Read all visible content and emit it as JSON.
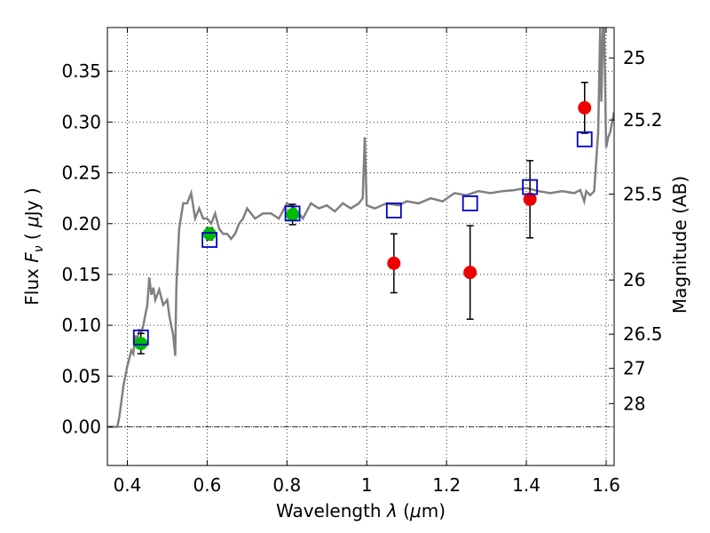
{
  "chart_data": {
    "type": "scatter",
    "xlabel": "Wavelength  λ (μm)",
    "ylabel": "Flux  F_ν  ( μJy )",
    "ylabel_parts": {
      "prefix": "Flux  ",
      "symbol": "F",
      "subscript": "ν",
      "unit_open": "  ( ",
      "unit_mu": "μ",
      "unit_rest": "Jy )"
    },
    "xlabel_parts": {
      "prefix": "Wavelength  ",
      "symbol": "λ",
      "unit_open": " (",
      "unit_mu": "μ",
      "unit_rest": "m)"
    },
    "y2label": "Magnitude (AB)",
    "xlim": [
      0.35,
      1.62
    ],
    "ylim": [
      -0.038,
      0.393
    ],
    "grid": true,
    "x_ticks": [
      {
        "v": 0.4,
        "label": "0.4"
      },
      {
        "v": 0.6,
        "label": "0.6"
      },
      {
        "v": 0.8,
        "label": "0.8"
      },
      {
        "v": 1.0,
        "label": "1"
      },
      {
        "v": 1.2,
        "label": "1.2"
      },
      {
        "v": 1.4,
        "label": "1.4"
      },
      {
        "v": 1.6,
        "label": "1.6"
      }
    ],
    "y_ticks": [
      {
        "v": 0.0,
        "label": "0.00"
      },
      {
        "v": 0.05,
        "label": "0.05"
      },
      {
        "v": 0.1,
        "label": "0.10"
      },
      {
        "v": 0.15,
        "label": "0.15"
      },
      {
        "v": 0.2,
        "label": "0.20"
      },
      {
        "v": 0.25,
        "label": "0.25"
      },
      {
        "v": 0.3,
        "label": "0.30"
      },
      {
        "v": 0.35,
        "label": "0.35"
      }
    ],
    "mag_ticks": [
      {
        "mag": 25,
        "label": "25"
      },
      {
        "mag": 25.2,
        "label": "25.2"
      },
      {
        "mag": 25.5,
        "label": "25.5"
      },
      {
        "mag": 26,
        "label": "26"
      },
      {
        "mag": 26.5,
        "label": "26.5"
      },
      {
        "mag": 27,
        "label": "27"
      },
      {
        "mag": 28,
        "label": "28"
      }
    ],
    "template_spectrum": {
      "color": "#808080",
      "x": [
        0.35,
        0.375,
        0.38,
        0.39,
        0.4,
        0.41,
        0.415,
        0.42,
        0.425,
        0.43,
        0.435,
        0.44,
        0.445,
        0.45,
        0.455,
        0.46,
        0.465,
        0.47,
        0.48,
        0.49,
        0.5,
        0.505,
        0.51,
        0.515,
        0.52,
        0.523,
        0.53,
        0.54,
        0.55,
        0.56,
        0.57,
        0.58,
        0.59,
        0.6,
        0.61,
        0.62,
        0.63,
        0.64,
        0.65,
        0.66,
        0.67,
        0.68,
        0.69,
        0.7,
        0.72,
        0.74,
        0.76,
        0.78,
        0.8,
        0.82,
        0.84,
        0.86,
        0.88,
        0.9,
        0.92,
        0.94,
        0.96,
        0.98,
        0.99,
        0.995,
        1.0,
        1.02,
        1.05,
        1.08,
        1.1,
        1.13,
        1.16,
        1.19,
        1.22,
        1.25,
        1.28,
        1.31,
        1.34,
        1.37,
        1.4,
        1.43,
        1.46,
        1.49,
        1.52,
        1.535,
        1.545,
        1.55,
        1.56,
        1.57,
        1.58,
        1.585,
        1.588,
        1.592,
        1.595,
        1.6,
        1.605,
        1.61,
        1.62
      ],
      "y": [
        0.0,
        0.0,
        0.01,
        0.04,
        0.06,
        0.075,
        0.072,
        0.09,
        0.085,
        0.095,
        0.093,
        0.1,
        0.11,
        0.12,
        0.147,
        0.13,
        0.137,
        0.125,
        0.135,
        0.12,
        0.125,
        0.11,
        0.1,
        0.09,
        0.07,
        0.14,
        0.195,
        0.22,
        0.22,
        0.23,
        0.205,
        0.215,
        0.205,
        0.205,
        0.2,
        0.21,
        0.195,
        0.19,
        0.19,
        0.185,
        0.19,
        0.2,
        0.205,
        0.215,
        0.205,
        0.21,
        0.21,
        0.205,
        0.22,
        0.215,
        0.205,
        0.22,
        0.215,
        0.218,
        0.212,
        0.22,
        0.215,
        0.22,
        0.225,
        0.285,
        0.218,
        0.215,
        0.22,
        0.218,
        0.222,
        0.22,
        0.225,
        0.222,
        0.23,
        0.228,
        0.232,
        0.23,
        0.232,
        0.233,
        0.235,
        0.232,
        0.23,
        0.232,
        0.23,
        0.233,
        0.222,
        0.232,
        0.228,
        0.232,
        0.29,
        0.4,
        0.32,
        0.4,
        0.4,
        0.275,
        0.285,
        0.29,
        0.31
      ]
    },
    "series": [
      {
        "marker": "circle",
        "color": "#00bb00",
        "points": [
          {
            "x": 0.434,
            "y": 0.082,
            "err": 0.01
          },
          {
            "x": 0.606,
            "y": 0.19,
            "err": 0.006
          },
          {
            "x": 0.814,
            "y": 0.209,
            "err": 0.01
          }
        ]
      },
      {
        "marker": "circle",
        "color": "#ee0000",
        "points": [
          {
            "x": 1.068,
            "y": 0.161,
            "err": 0.029
          },
          {
            "x": 1.259,
            "y": 0.152,
            "err": 0.046
          },
          {
            "x": 1.409,
            "y": 0.224,
            "err": 0.038
          },
          {
            "x": 1.546,
            "y": 0.314,
            "err": 0.025
          }
        ]
      },
      {
        "marker": "square-open",
        "color": "#0000cc",
        "points": [
          {
            "x": 0.434,
            "y": 0.088
          },
          {
            "x": 0.606,
            "y": 0.184
          },
          {
            "x": 0.814,
            "y": 0.21
          },
          {
            "x": 1.068,
            "y": 0.213
          },
          {
            "x": 1.259,
            "y": 0.22
          },
          {
            "x": 1.409,
            "y": 0.236
          },
          {
            "x": 1.546,
            "y": 0.283
          }
        ]
      }
    ]
  }
}
